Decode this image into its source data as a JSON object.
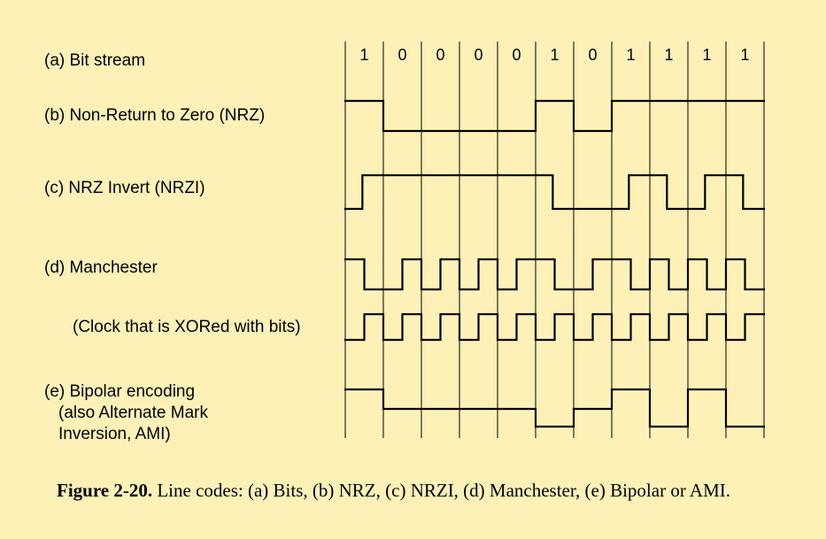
{
  "bit_stream": [
    "1",
    "0",
    "0",
    "0",
    "0",
    "1",
    "0",
    "1",
    "1",
    "1",
    "1"
  ],
  "labels": {
    "a": "(a) Bit stream",
    "b": "(b) Non-Return to Zero (NRZ)",
    "c": "(c) NRZ Invert (NRZI)",
    "d": "(d) Manchester",
    "d_clock": "(Clock that is XORed with bits)",
    "e_line1": "(e) Bipolar encoding",
    "e_line2": "(also Alternate Mark",
    "e_line3": "Inversion, AMI)"
  },
  "signals": {
    "nrz": [
      1,
      0,
      0,
      0,
      0,
      1,
      0,
      1,
      1,
      1,
      1
    ],
    "nrzi": [
      0,
      1,
      1,
      1,
      1,
      1,
      0,
      0,
      1,
      0,
      1,
      0
    ],
    "manchester_halves": [
      [
        1,
        0
      ],
      [
        0,
        1
      ],
      [
        0,
        1
      ],
      [
        0,
        1
      ],
      [
        0,
        1
      ],
      [
        1,
        0
      ],
      [
        0,
        1
      ],
      [
        1,
        0
      ],
      [
        1,
        0
      ],
      [
        1,
        0
      ],
      [
        1,
        0
      ]
    ],
    "clock_halves": [
      [
        0,
        1
      ],
      [
        0,
        1
      ],
      [
        0,
        1
      ],
      [
        0,
        1
      ],
      [
        0,
        1
      ],
      [
        0,
        1
      ],
      [
        0,
        1
      ],
      [
        0,
        1
      ],
      [
        0,
        1
      ],
      [
        0,
        1
      ],
      [
        0,
        1
      ]
    ],
    "bipolar": [
      0,
      -1,
      -1,
      -1,
      -1,
      -2,
      -1,
      0,
      -2,
      0,
      -2
    ]
  },
  "caption": {
    "label": "Figure 2-20.",
    "text": "Line codes: (a) Bits, (b) NRZ, (c) NRZI, (d) Manchester, (e) Bipolar or AMI."
  }
}
